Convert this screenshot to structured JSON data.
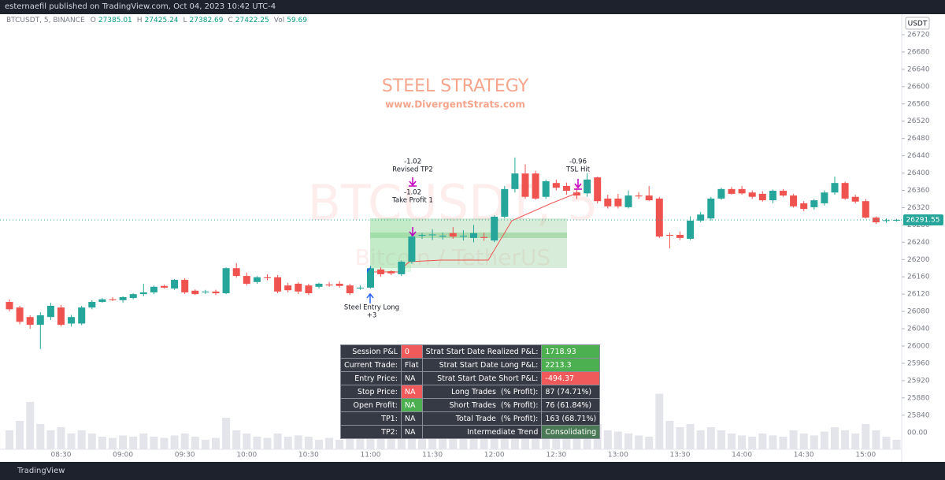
{
  "header": {
    "published": "esternaefil published on TradingView.com, Oct 04, 2023 10:42 UTC-4"
  },
  "legend": {
    "symbol": "BTCUSDT, 5, BINANCE",
    "items": [
      {
        "label": "O",
        "value": 27385.01
      },
      {
        "label": "H",
        "value": 27425.24
      },
      {
        "label": "L",
        "value": 27382.69
      },
      {
        "label": "C",
        "value": 27422.25
      },
      {
        "label": "Vol",
        "value": 59.69
      }
    ]
  },
  "chart_data": {
    "type": "candlestick",
    "title": "STEEL STRATEGY",
    "subtitle": "www.DivergentStrats.com",
    "watermark": "BTCUSDT, 5",
    "watermark_sub": "Bitcoin / TetherUS",
    "currency": "USDT",
    "last_price": 26291.55,
    "volume_axis_label": "00.00",
    "up_color": "#26a69a",
    "down_color": "#ef5350",
    "volume_color": "#e3e5eb",
    "categories": [
      null,
      null,
      null,
      null,
      null,
      "08:30",
      null,
      null,
      null,
      null,
      null,
      "09:00",
      null,
      null,
      null,
      null,
      null,
      "09:30",
      null,
      null,
      null,
      null,
      null,
      "10:00",
      null,
      null,
      null,
      null,
      null,
      "10:30",
      null,
      null,
      null,
      null,
      null,
      "11:00",
      null,
      null,
      null,
      null,
      null,
      "11:30",
      null,
      null,
      null,
      null,
      null,
      "12:00",
      null,
      null,
      null,
      null,
      null,
      "12:30",
      null,
      null,
      null,
      null,
      null,
      "13:00",
      null,
      null,
      null,
      null,
      null,
      "13:30",
      null,
      null,
      null,
      null,
      null,
      "14:00",
      null,
      null,
      null,
      null,
      null,
      "14:30",
      null,
      null,
      null,
      null,
      null,
      "15:00",
      null,
      null,
      null
    ],
    "open": [
      26102,
      26089,
      26067,
      26049,
      26067,
      26089,
      26052,
      26052,
      26089,
      26102,
      26108,
      26106,
      26111,
      26120,
      26124,
      26139,
      26133,
      26153,
      26128,
      26124,
      26126,
      26122,
      26180,
      26162,
      26148,
      26159,
      26159,
      26140,
      26144,
      26140,
      26137,
      26142,
      26144,
      26140,
      26133,
      26135,
      26177,
      26173,
      26166,
      26195,
      26255,
      26257,
      26253,
      26261,
      26253,
      26250,
      26252,
      26244,
      26299,
      26363,
      26399,
      26399,
      26345,
      26377,
      26370,
      26355,
      26353,
      26390,
      26341,
      26341,
      26321,
      26348,
      26348,
      26341,
      26257,
      26257,
      26248,
      26290,
      26295,
      26341,
      26363,
      26363,
      26355,
      26352,
      26337,
      26359,
      26348,
      26330,
      26321,
      26330,
      26355,
      26377,
      26345,
      26335,
      26297,
      26290,
      26291
    ],
    "high": [
      26108,
      26093,
      26071,
      26078,
      26100,
      26095,
      26072,
      26093,
      26106,
      26111,
      26113,
      26115,
      26122,
      26144,
      26140,
      26142,
      26155,
      26157,
      26131,
      26130,
      26130,
      26182,
      26192,
      26170,
      26162,
      26166,
      26164,
      26146,
      26148,
      26144,
      26146,
      26148,
      26150,
      26144,
      26140,
      26185,
      26182,
      26175,
      26198,
      26260,
      26262,
      26270,
      26262,
      26275,
      26268,
      26280,
      26262,
      26302,
      26370,
      26436,
      26420,
      26405,
      26385,
      26385,
      26378,
      26365,
      26400,
      26392,
      26350,
      26352,
      26360,
      26356,
      26370,
      26345,
      26262,
      26265,
      26300,
      26310,
      26345,
      26366,
      26368,
      26370,
      26360,
      26358,
      26362,
      26363,
      26352,
      26335,
      26340,
      26360,
      26392,
      26380,
      26350,
      26340,
      26300,
      26295,
      26294
    ],
    "low": [
      26080,
      26050,
      26040,
      25993,
      26060,
      26045,
      26045,
      26048,
      26085,
      26100,
      26104,
      26100,
      26108,
      26115,
      26120,
      26133,
      26130,
      26120,
      26118,
      26120,
      26118,
      26120,
      26158,
      26140,
      26144,
      26152,
      26122,
      26124,
      26120,
      26118,
      26133,
      26137,
      26135,
      26118,
      26130,
      26133,
      26160,
      26164,
      26162,
      26190,
      26248,
      26245,
      26246,
      26248,
      26244,
      26240,
      26243,
      26240,
      26295,
      26355,
      26340,
      26338,
      26340,
      26360,
      26350,
      26340,
      26345,
      26330,
      26318,
      26318,
      26318,
      26340,
      26335,
      26250,
      26226,
      26245,
      26245,
      26286,
      26290,
      26338,
      26350,
      26350,
      26340,
      26334,
      26330,
      26345,
      26320,
      26312,
      26315,
      26325,
      26350,
      26338,
      26330,
      26295,
      26282,
      26285,
      26288
    ],
    "close": [
      26085,
      26056,
      26049,
      26071,
      26093,
      26049,
      26067,
      26089,
      26102,
      26108,
      26106,
      26113,
      26120,
      26124,
      26137,
      26135,
      26153,
      26124,
      26120,
      26126,
      26122,
      26180,
      26162,
      26144,
      26159,
      26157,
      26126,
      26129,
      26126,
      26122,
      26144,
      26140,
      26139,
      26122,
      26135,
      26180,
      26166,
      26168,
      26195,
      26253,
      26257,
      26258,
      26255,
      26253,
      26255,
      26261,
      26250,
      26299,
      26363,
      26399,
      26345,
      26341,
      26381,
      26366,
      26359,
      26348,
      26385,
      26335,
      26323,
      26323,
      26348,
      26346,
      26337,
      26253,
      26256,
      26250,
      26290,
      26304,
      26341,
      26363,
      26352,
      26353,
      26345,
      26337,
      26359,
      26348,
      26323,
      26317,
      26337,
      26355,
      26377,
      26341,
      26334,
      26297,
      26286,
      26291,
      26291.55
    ],
    "volume": [
      30,
      45,
      75,
      40,
      30,
      35,
      25,
      30,
      25,
      20,
      18,
      22,
      20,
      25,
      20,
      18,
      22,
      25,
      20,
      15,
      18,
      50,
      30,
      25,
      20,
      18,
      25,
      20,
      22,
      20,
      15,
      18,
      15,
      20,
      18,
      45,
      25,
      20,
      35,
      70,
      30,
      25,
      22,
      20,
      25,
      30,
      22,
      40,
      55,
      65,
      50,
      45,
      30,
      25,
      28,
      30,
      35,
      40,
      30,
      28,
      25,
      22,
      20,
      88,
      45,
      35,
      40,
      30,
      35,
      30,
      25,
      22,
      20,
      25,
      22,
      20,
      30,
      25,
      22,
      28,
      35,
      30,
      25,
      40,
      30,
      20,
      15
    ],
    "vlim": [
      0,
      100
    ],
    "ylim": [
      25761.2,
      26767.4
    ],
    "yticks": [
      26720,
      26680,
      26640,
      26600,
      26560,
      26520,
      26480,
      26440,
      26400,
      26360,
      26320,
      26280,
      26240,
      26200,
      26160,
      26120,
      26080,
      26040,
      26000,
      25960,
      25920,
      25880,
      25840
    ],
    "annotations": [
      {
        "label": "Steel Entry Long",
        "value": "+3"
      },
      {
        "label": "Revised TP2",
        "value": "-1.02"
      },
      {
        "label": "Take Profit 1",
        "value": "-1.02"
      },
      {
        "label": "TSL Hit",
        "value": "-0.96"
      }
    ]
  },
  "table": {
    "rows": [
      [
        "Session P&L",
        "0",
        "Strat Start Date Realized P&L:",
        "1718.93"
      ],
      [
        "Current Trade:",
        "Flat",
        "Strat Start Date Long P&L:",
        "2213.3"
      ],
      [
        "Entry Price:",
        "NA",
        "Strat Start Date Short P&L:",
        "-494.37"
      ],
      [
        "Stop Price:",
        "NA",
        "Long Trades  (% Profit):",
        "87 (74.71%)"
      ],
      [
        "Open Profit:",
        "NA",
        "Short Trades  (% Profit):",
        "76 (61.84%)"
      ],
      [
        "TP1:",
        "NA",
        "Total Trade  (% Profit):",
        "163 (68.71%)"
      ],
      [
        "TP2:",
        "NA",
        "Intermediate Trend",
        "Consolidating"
      ]
    ],
    "cell_colors": [
      [
        "#363a45",
        "#f05a5a",
        "#363a45",
        "#4caf50"
      ],
      [
        "#363a45",
        "#363a45",
        "#363a45",
        "#4caf50"
      ],
      [
        "#363a45",
        "#363a45",
        "#363a45",
        "#f05a5a"
      ],
      [
        "#363a45",
        "#f05a5a",
        "#363a45",
        "#363a45"
      ],
      [
        "#363a45",
        "#4caf50",
        "#363a45",
        "#363a45"
      ],
      [
        "#363a45",
        "#363a45",
        "#363a45",
        "#363a45"
      ],
      [
        "#363a45",
        "#363a45",
        "#363a45",
        "#4a7a55"
      ]
    ]
  },
  "footer": {
    "brand": "TradingView"
  }
}
